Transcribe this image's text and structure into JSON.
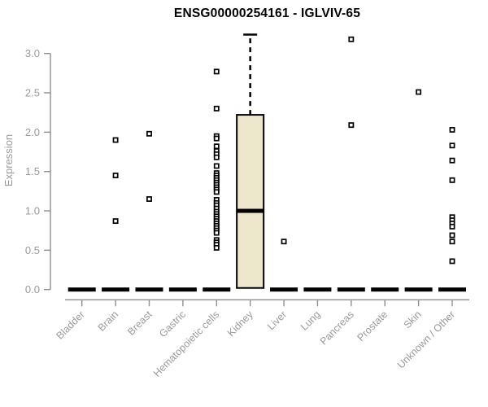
{
  "header": {
    "title": "ENSG00000254161 - IGLVIV-65"
  },
  "chart_data": {
    "type": "boxplot",
    "title": "ENSG00000254161 - IGLVIV-65",
    "xlabel": "",
    "ylabel": "Expression",
    "yticks": [
      0.0,
      0.5,
      1.0,
      1.5,
      2.0,
      2.5,
      3.0
    ],
    "ylim": [
      0,
      3.3
    ],
    "grid": false,
    "legend": false,
    "point_marker": "open-square",
    "colors": {
      "box_fill": "#EDE8CD",
      "box_border": "#000000",
      "median": "#000000",
      "point": "#000000",
      "axis": "#8f8f8f",
      "tick_label": "#9a9a9a",
      "title": "#000000"
    },
    "categories": [
      {
        "label": "Bladder",
        "zero_bar": true,
        "points": []
      },
      {
        "label": "Brain",
        "zero_bar": true,
        "points": [
          1.9,
          1.45,
          0.87
        ]
      },
      {
        "label": "Breast",
        "zero_bar": true,
        "points": [
          1.98,
          1.15
        ]
      },
      {
        "label": "Gastric",
        "zero_bar": true,
        "points": []
      },
      {
        "label": "Hematopoietic cells",
        "zero_bar": true,
        "points": [
          2.77,
          2.3,
          1.95,
          1.92,
          1.82,
          1.76,
          1.72,
          1.68,
          1.57,
          1.48,
          1.45,
          1.42,
          1.39,
          1.36,
          1.33,
          1.3,
          1.27,
          1.24,
          1.14,
          1.1,
          1.07,
          1.03,
          0.99,
          0.96,
          0.93,
          0.9,
          0.87,
          0.84,
          0.81,
          0.78,
          0.75,
          0.72,
          0.63,
          0.6,
          0.57,
          0.53
        ]
      },
      {
        "label": "Kidney",
        "zero_bar": false,
        "points": [],
        "box": {
          "whisker_low": 0.02,
          "q1": 0.02,
          "median": 1.0,
          "q3": 2.22,
          "whisker_high": 3.24
        }
      },
      {
        "label": "Liver",
        "zero_bar": true,
        "points": [
          0.61
        ]
      },
      {
        "label": "Lung",
        "zero_bar": true,
        "points": []
      },
      {
        "label": "Pancreas",
        "zero_bar": true,
        "points": [
          3.18,
          2.09
        ]
      },
      {
        "label": "Prostate",
        "zero_bar": true,
        "points": []
      },
      {
        "label": "Skin",
        "zero_bar": true,
        "points": [
          2.51
        ]
      },
      {
        "label": "Unknown / Other",
        "zero_bar": true,
        "points": [
          2.03,
          1.83,
          1.64,
          1.39,
          0.92,
          0.88,
          0.84,
          0.8,
          0.69,
          0.61,
          0.36
        ]
      }
    ]
  }
}
